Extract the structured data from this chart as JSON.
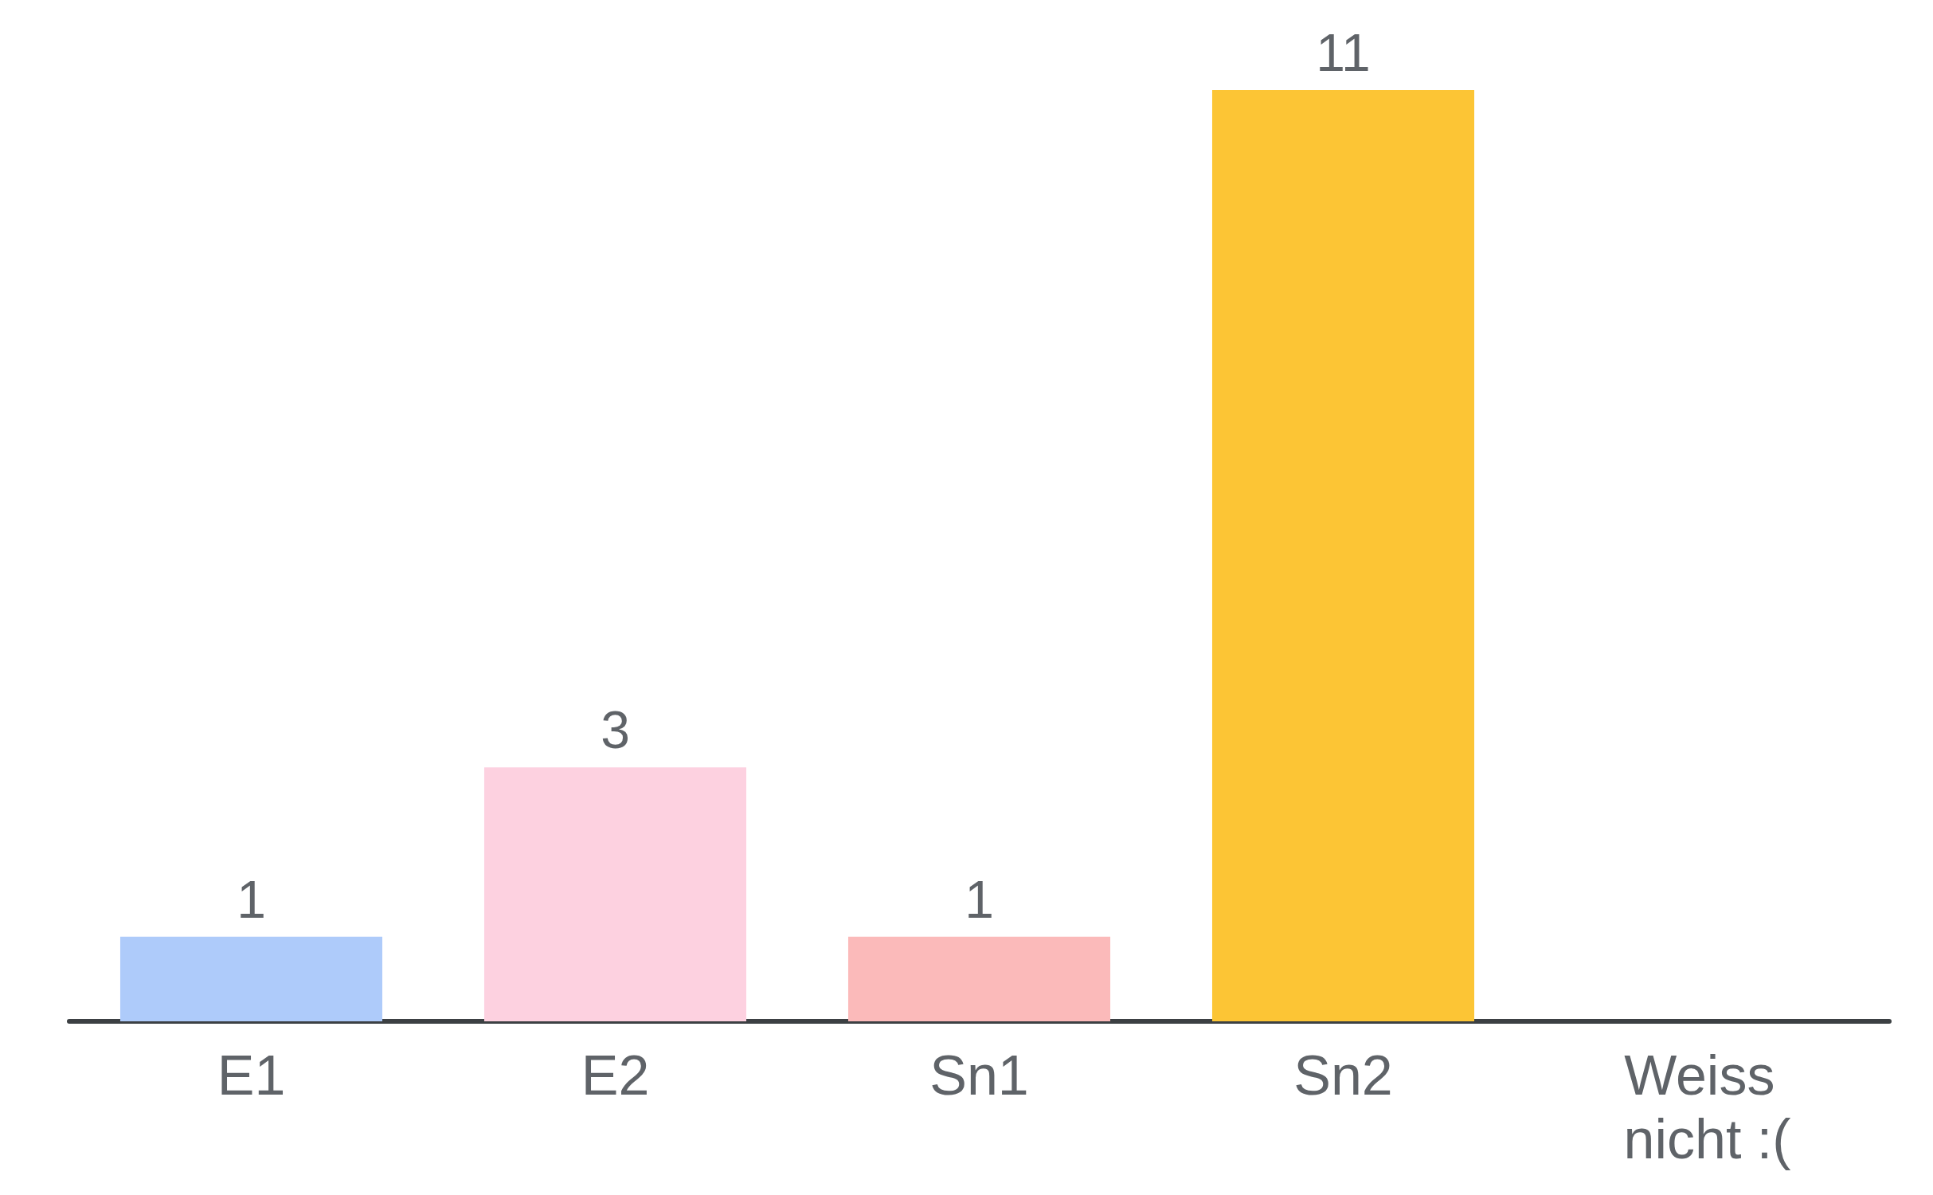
{
  "chart_data": {
    "type": "bar",
    "categories": [
      "E1",
      "E2",
      "Sn1",
      "Sn2",
      "Weiss nicht :("
    ],
    "values": [
      1,
      3,
      1,
      11,
      0
    ],
    "colors": [
      "#aecbfa",
      "#fdd1e0",
      "#fbbaba",
      "#fcc535",
      "#cccccc"
    ],
    "value_labels": [
      "1",
      "3",
      "1",
      "11",
      null
    ]
  }
}
